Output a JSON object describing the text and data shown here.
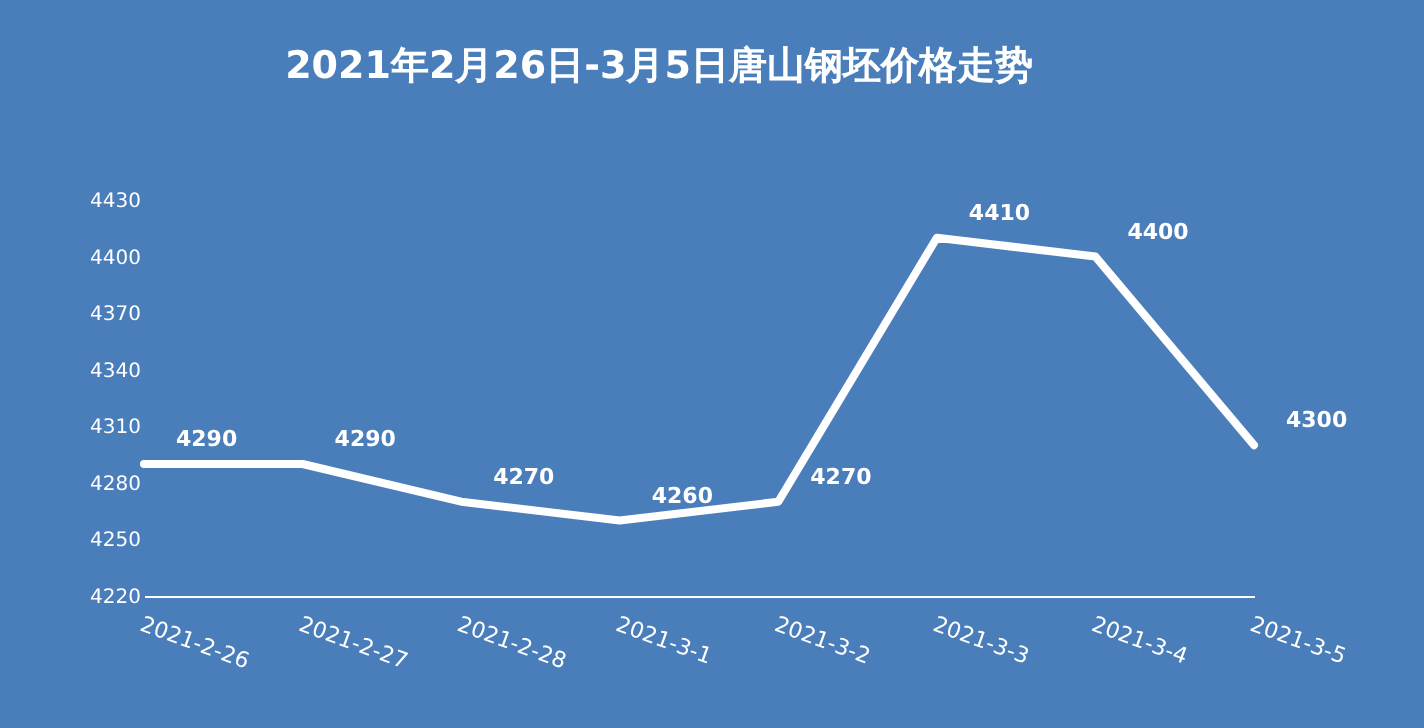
{
  "chart_data": {
    "type": "line",
    "title": "2021年2月26日-3月5日唐山钢坯价格走势",
    "categories": [
      "2021-2-26",
      "2021-2-27",
      "2021-2-28",
      "2021-3-1",
      "2021-3-2",
      "2021-3-3",
      "2021-3-4",
      "2021-3-5"
    ],
    "values": [
      4290,
      4290,
      4270,
      4260,
      4270,
      4410,
      4400,
      4300
    ],
    "color": "#ffffff",
    "ylim": [
      4220,
      4430
    ],
    "yticks": [
      4220,
      4250,
      4280,
      4310,
      4340,
      4370,
      4400,
      4430
    ],
    "data_labels": true,
    "grid": false,
    "marker": "none",
    "line_style": "solid"
  }
}
